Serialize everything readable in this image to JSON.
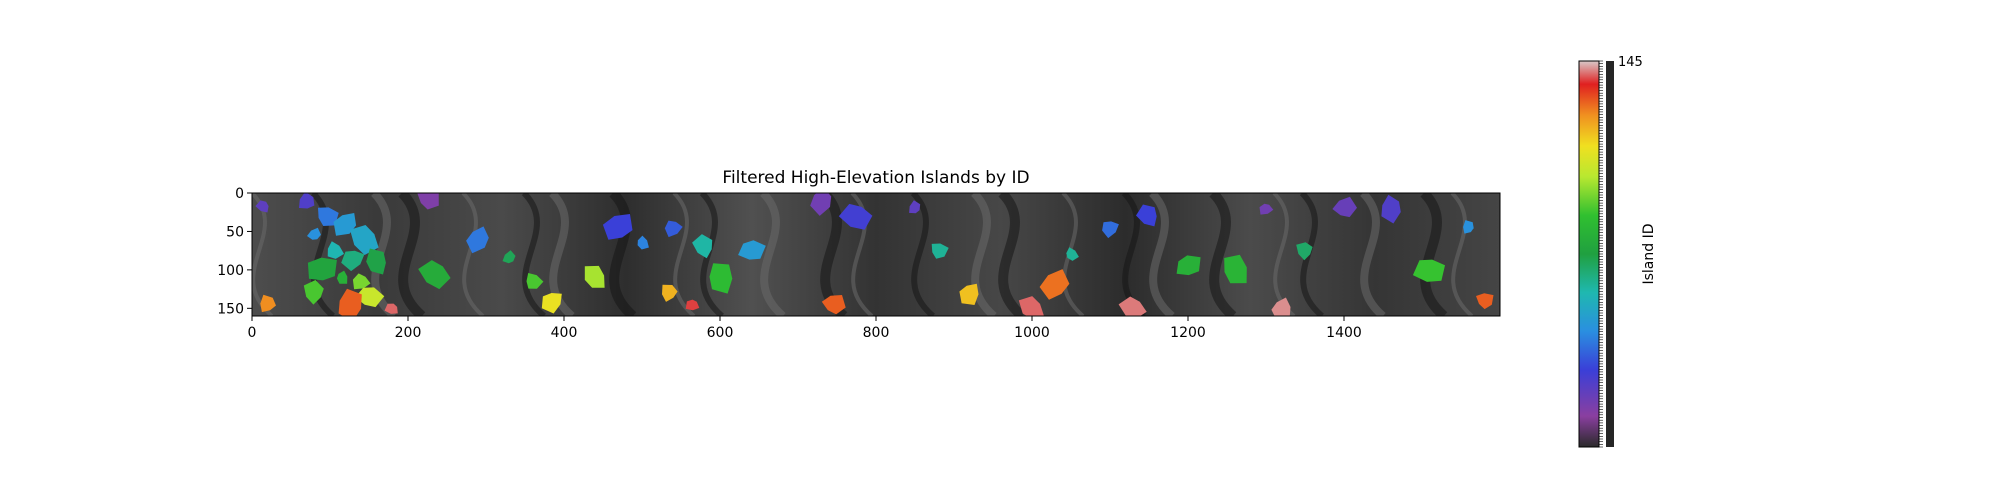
{
  "chart_data": {
    "type": "heatmap",
    "title": "Filtered High-Elevation Islands by ID",
    "xlabel": "",
    "ylabel": "",
    "x_range": [
      0,
      1600
    ],
    "y_range": [
      0,
      160
    ],
    "y_inverted": true,
    "x_ticks": [
      "0",
      "200",
      "400",
      "600",
      "800",
      "1000",
      "1200",
      "1400"
    ],
    "y_ticks": [
      "0",
      "50",
      "100",
      "150"
    ],
    "background": "grayscale elevation (hillshade)",
    "overlay_colormap": "nipy_spectral",
    "colorbar": {
      "label": "Island ID",
      "min": 1,
      "max": 145,
      "top_tick": "145"
    },
    "islands": [
      {
        "x": 15,
        "y": 17,
        "id": 22
      },
      {
        "x": 70,
        "y": 12,
        "id": 25
      },
      {
        "x": 95,
        "y": 30,
        "id": 40
      },
      {
        "x": 120,
        "y": 40,
        "id": 48
      },
      {
        "x": 145,
        "y": 60,
        "id": 52
      },
      {
        "x": 80,
        "y": 55,
        "id": 45
      },
      {
        "x": 105,
        "y": 75,
        "id": 58
      },
      {
        "x": 130,
        "y": 85,
        "id": 65
      },
      {
        "x": 160,
        "y": 90,
        "id": 72
      },
      {
        "x": 90,
        "y": 100,
        "id": 75
      },
      {
        "x": 115,
        "y": 110,
        "id": 80
      },
      {
        "x": 140,
        "y": 115,
        "id": 95
      },
      {
        "x": 80,
        "y": 130,
        "id": 90
      },
      {
        "x": 150,
        "y": 135,
        "id": 105
      },
      {
        "x": 125,
        "y": 145,
        "id": 130
      },
      {
        "x": 180,
        "y": 150,
        "id": 140
      },
      {
        "x": 20,
        "y": 145,
        "id": 125
      },
      {
        "x": 225,
        "y": 8,
        "id": 15
      },
      {
        "x": 290,
        "y": 60,
        "id": 40
      },
      {
        "x": 235,
        "y": 105,
        "id": 78
      },
      {
        "x": 330,
        "y": 85,
        "id": 70
      },
      {
        "x": 360,
        "y": 115,
        "id": 90
      },
      {
        "x": 385,
        "y": 140,
        "id": 112
      },
      {
        "x": 440,
        "y": 110,
        "id": 100
      },
      {
        "x": 470,
        "y": 45,
        "id": 30
      },
      {
        "x": 500,
        "y": 65,
        "id": 42
      },
      {
        "x": 540,
        "y": 45,
        "id": 35
      },
      {
        "x": 580,
        "y": 70,
        "id": 60
      },
      {
        "x": 640,
        "y": 75,
        "id": 48
      },
      {
        "x": 600,
        "y": 110,
        "id": 85
      },
      {
        "x": 565,
        "y": 145,
        "id": 138
      },
      {
        "x": 535,
        "y": 130,
        "id": 120
      },
      {
        "x": 745,
        "y": 145,
        "id": 130
      },
      {
        "x": 730,
        "y": 10,
        "id": 18
      },
      {
        "x": 775,
        "y": 30,
        "id": 28
      },
      {
        "x": 850,
        "y": 20,
        "id": 22
      },
      {
        "x": 880,
        "y": 75,
        "id": 62
      },
      {
        "x": 920,
        "y": 130,
        "id": 118
      },
      {
        "x": 1000,
        "y": 150,
        "id": 140
      },
      {
        "x": 1030,
        "y": 120,
        "id": 128
      },
      {
        "x": 1050,
        "y": 80,
        "id": 62
      },
      {
        "x": 1100,
        "y": 45,
        "id": 38
      },
      {
        "x": 1150,
        "y": 30,
        "id": 30
      },
      {
        "x": 1200,
        "y": 95,
        "id": 80
      },
      {
        "x": 1260,
        "y": 100,
        "id": 82
      },
      {
        "x": 1300,
        "y": 20,
        "id": 18
      },
      {
        "x": 1350,
        "y": 75,
        "id": 68
      },
      {
        "x": 1400,
        "y": 20,
        "id": 20
      },
      {
        "x": 1460,
        "y": 20,
        "id": 25
      },
      {
        "x": 1510,
        "y": 100,
        "id": 88
      },
      {
        "x": 1560,
        "y": 45,
        "id": 45
      },
      {
        "x": 1580,
        "y": 140,
        "id": 130
      },
      {
        "x": 1320,
        "y": 150,
        "id": 142
      },
      {
        "x": 1130,
        "y": 150,
        "id": 141
      }
    ]
  }
}
